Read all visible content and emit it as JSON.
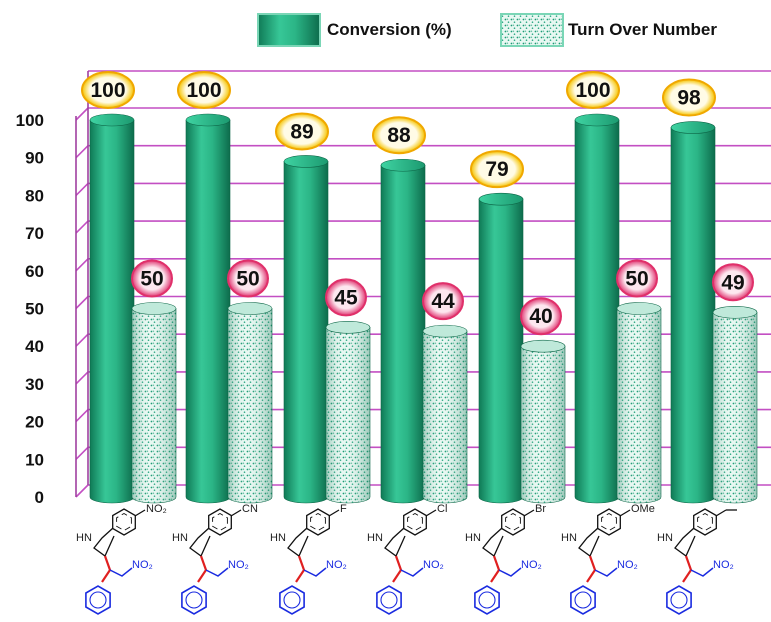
{
  "chart_data": {
    "type": "bar",
    "categories": [
      "NO2",
      "CN",
      "F",
      "Cl",
      "Br",
      "OMe",
      "Me"
    ],
    "ylim": [
      0,
      100
    ],
    "yticks": [
      0,
      10,
      20,
      30,
      40,
      50,
      60,
      70,
      80,
      90,
      100
    ],
    "grid": true,
    "legend_position": "top-right",
    "series": [
      {
        "name": "Conversion (%)",
        "values": [
          100,
          100,
          89,
          88,
          79,
          100,
          98
        ],
        "labels": [
          "100",
          "100",
          "89",
          "88",
          "79",
          "100",
          "98"
        ]
      },
      {
        "name": "Turn Over Number",
        "values": [
          50,
          50,
          45,
          44,
          40,
          50,
          49
        ],
        "labels": [
          "50",
          "50",
          "45",
          "44",
          "40",
          "50",
          "49"
        ]
      }
    ],
    "substituent_labels": [
      "NO₂",
      "CN",
      "F",
      "Cl",
      "Br",
      "OMe",
      ""
    ],
    "structure_labels": {
      "hn": "HN",
      "no2": "NO₂"
    },
    "colors": {
      "conversion": "#2fbf8e",
      "conversion_dark": "#12805c",
      "ton_fill": "#e6f7f1",
      "ton_dots": "#1b9b74",
      "grid": "#c34fc3",
      "axis": "#a040a0",
      "conversion_badge": "#f0a800",
      "ton_badge": "#e0306a",
      "linker": "#e02020",
      "phenyl": "#1a2be0",
      "scaffold": "#111111"
    }
  }
}
